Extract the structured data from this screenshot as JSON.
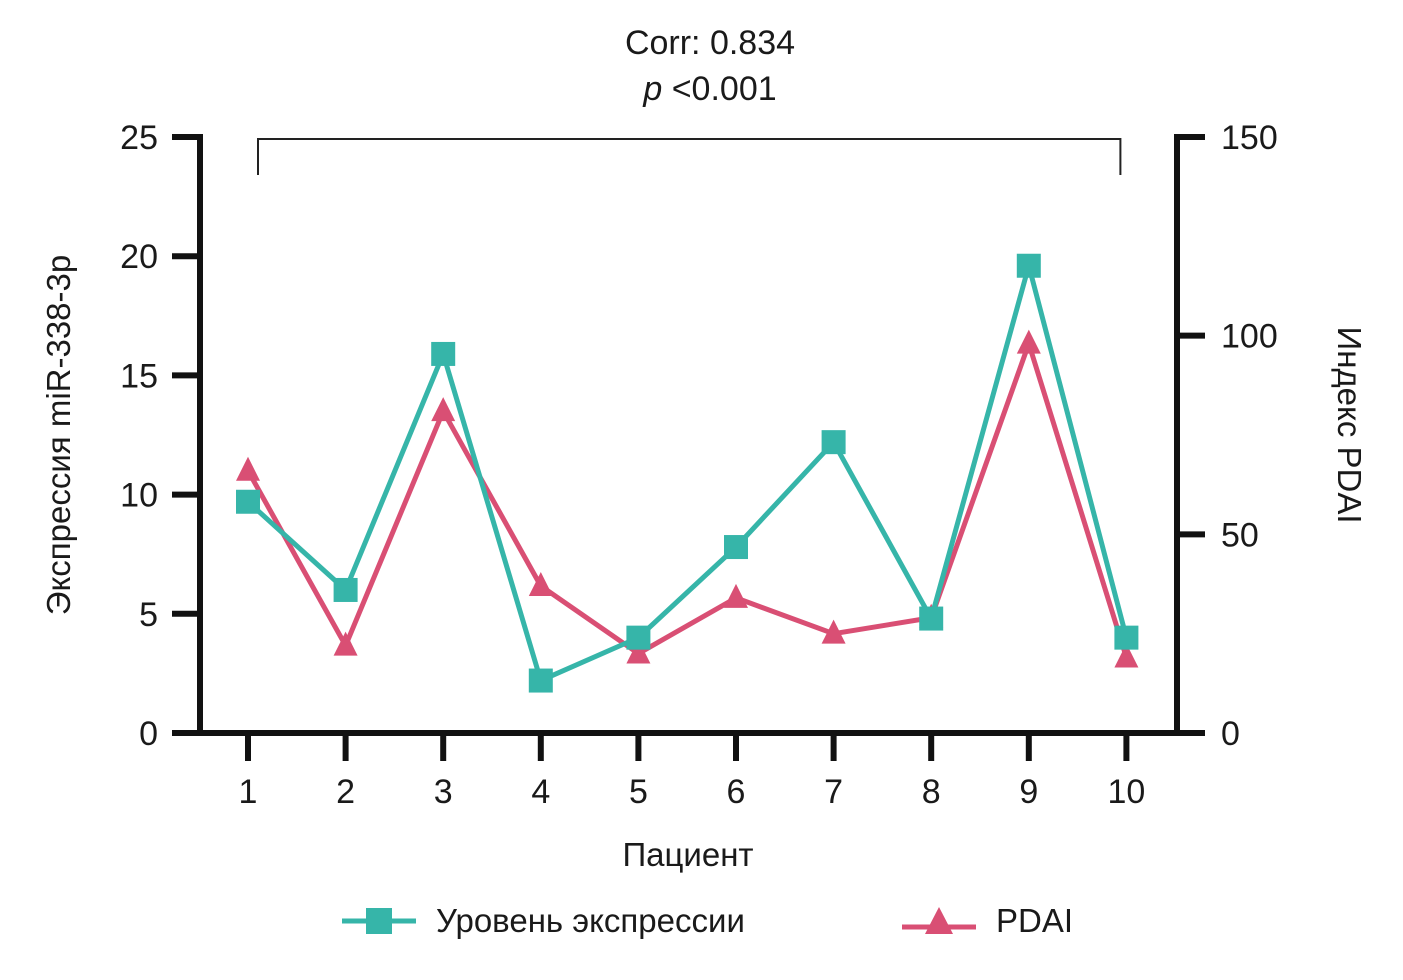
{
  "chart_data": {
    "type": "line",
    "annotation": {
      "corr": "Corr: 0.834",
      "p_label": "p",
      "p_value": "<0.001"
    },
    "xlabel": "Пациент",
    "ylabel_left": "Экспрессия miR-338-3p",
    "ylabel_right": "Индекс PDAI",
    "categories": [
      "1",
      "2",
      "3",
      "4",
      "5",
      "6",
      "7",
      "8",
      "9",
      "10"
    ],
    "left_axis": {
      "min": 0,
      "max": 25,
      "ticks": [
        0,
        5,
        10,
        15,
        20,
        25
      ]
    },
    "right_axis": {
      "min": 0,
      "max": 150,
      "ticks": [
        0,
        50,
        100,
        150
      ]
    },
    "series": [
      {
        "name": "Уровень экспрессии",
        "axis": "left",
        "color": "#36b5a9",
        "marker": "square",
        "values": [
          9.7,
          6.0,
          15.9,
          2.2,
          4.0,
          7.8,
          12.2,
          4.8,
          19.6,
          4.0
        ]
      },
      {
        "name": "PDAI",
        "axis": "right",
        "color": "#d94f74",
        "marker": "triangle",
        "values": [
          66,
          22,
          81,
          37,
          20,
          34,
          25,
          29,
          98,
          19
        ]
      }
    ],
    "bracket": {
      "from": "1",
      "to": "10"
    }
  }
}
